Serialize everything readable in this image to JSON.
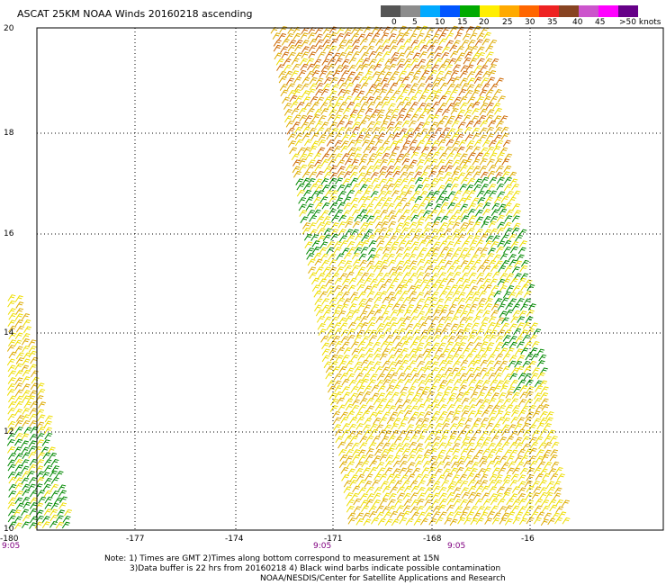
{
  "title": "ASCAT 25KM NOAA Winds 20160218 ascending",
  "legend": {
    "colors": [
      "#555555",
      "#8c8c8c",
      "#00aaff",
      "#0055ff",
      "#00aa00",
      "#ffee00",
      "#ffaa00",
      "#ff6600",
      "#ee2222",
      "#884422",
      "#cc55cc",
      "#ff00ff",
      "#660088"
    ],
    "labels": [
      "0",
      "5",
      "10",
      "15",
      "20",
      "25",
      "30",
      "35",
      "40",
      "45",
      ">50 knots"
    ]
  },
  "map": {
    "lat_labels": [
      "20",
      "18",
      "16",
      "14",
      "12",
      "10"
    ],
    "lon_labels": [
      "-180",
      "-177",
      "-174",
      "-171",
      "-168",
      "-16"
    ],
    "time_labels": [
      "9:05",
      "9:05",
      "9:05"
    ],
    "lon_range": [
      -180,
      -165
    ],
    "lat_range": [
      10,
      20
    ],
    "grid": true,
    "grid_style": "dotted",
    "barb_colors": {
      "calm_green": "#008800",
      "yellow": "#eedd00",
      "gold": "#ddaa00",
      "orange": "#cc6600"
    }
  },
  "notes": {
    "line1": "Note: 1) Times are GMT 2)Times along bottom correspond to measurement at 15N",
    "line2": "3)Data buffer is 22 hrs from 20160218 4) Black wind barbs indicate possible contamination",
    "line3": "NOAA/NESDIS/Center for Satellite Applications and Research"
  }
}
